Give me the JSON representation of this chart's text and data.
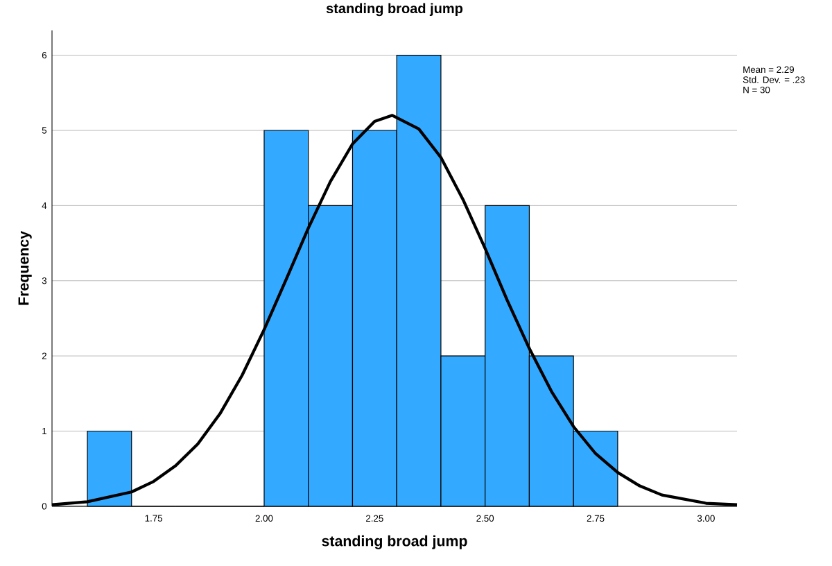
{
  "chart_data": {
    "type": "histogram",
    "title": "standing broad jump",
    "xlabel": "standing broad jump",
    "ylabel": "Frequency",
    "annotations": [
      "Mean = 2.29",
      "Std. Dev. = .23",
      "N = 30"
    ],
    "series": [
      {
        "color": "#33aaff",
        "bins": [
          1.6,
          1.7,
          1.8,
          1.9,
          2.0,
          2.1,
          2.2,
          2.3,
          2.4,
          2.5,
          2.6,
          2.7,
          2.8
        ],
        "values": [
          1,
          0,
          0,
          0,
          5,
          4,
          5,
          6,
          2,
          4,
          2,
          1
        ]
      },
      {
        "type": "line",
        "color": "#000000",
        "x": [
          1.52,
          1.6,
          1.7,
          1.75,
          1.8,
          1.85,
          1.9,
          1.95,
          2.0,
          2.05,
          2.1,
          2.15,
          2.2,
          2.25,
          2.29,
          2.35,
          2.4,
          2.45,
          2.5,
          2.55,
          2.6,
          2.65,
          2.7,
          2.75,
          2.8,
          2.85,
          2.9,
          3.0,
          3.07
        ],
        "values": [
          0.02,
          0.06,
          0.19,
          0.33,
          0.54,
          0.83,
          1.23,
          1.74,
          2.35,
          3.02,
          3.7,
          4.32,
          4.82,
          5.12,
          5.2,
          5.02,
          4.64,
          4.08,
          3.43,
          2.74,
          2.1,
          1.53,
          1.06,
          0.7,
          0.45,
          0.27,
          0.15,
          0.04,
          0.02
        ]
      }
    ],
    "xlim": [
      1.52,
      3.07
    ],
    "ylim": [
      0,
      6.33
    ],
    "xticks": [
      {
        "value": 1.75,
        "label": "1.75"
      },
      {
        "value": 2.0,
        "label": "2.00"
      },
      {
        "value": 2.25,
        "label": "2.25"
      },
      {
        "value": 2.5,
        "label": "2.50"
      },
      {
        "value": 2.75,
        "label": "2.75"
      },
      {
        "value": 3.0,
        "label": "3.00"
      }
    ],
    "yticks": [
      0,
      1,
      2,
      3,
      4,
      5,
      6
    ],
    "grid": "y"
  }
}
